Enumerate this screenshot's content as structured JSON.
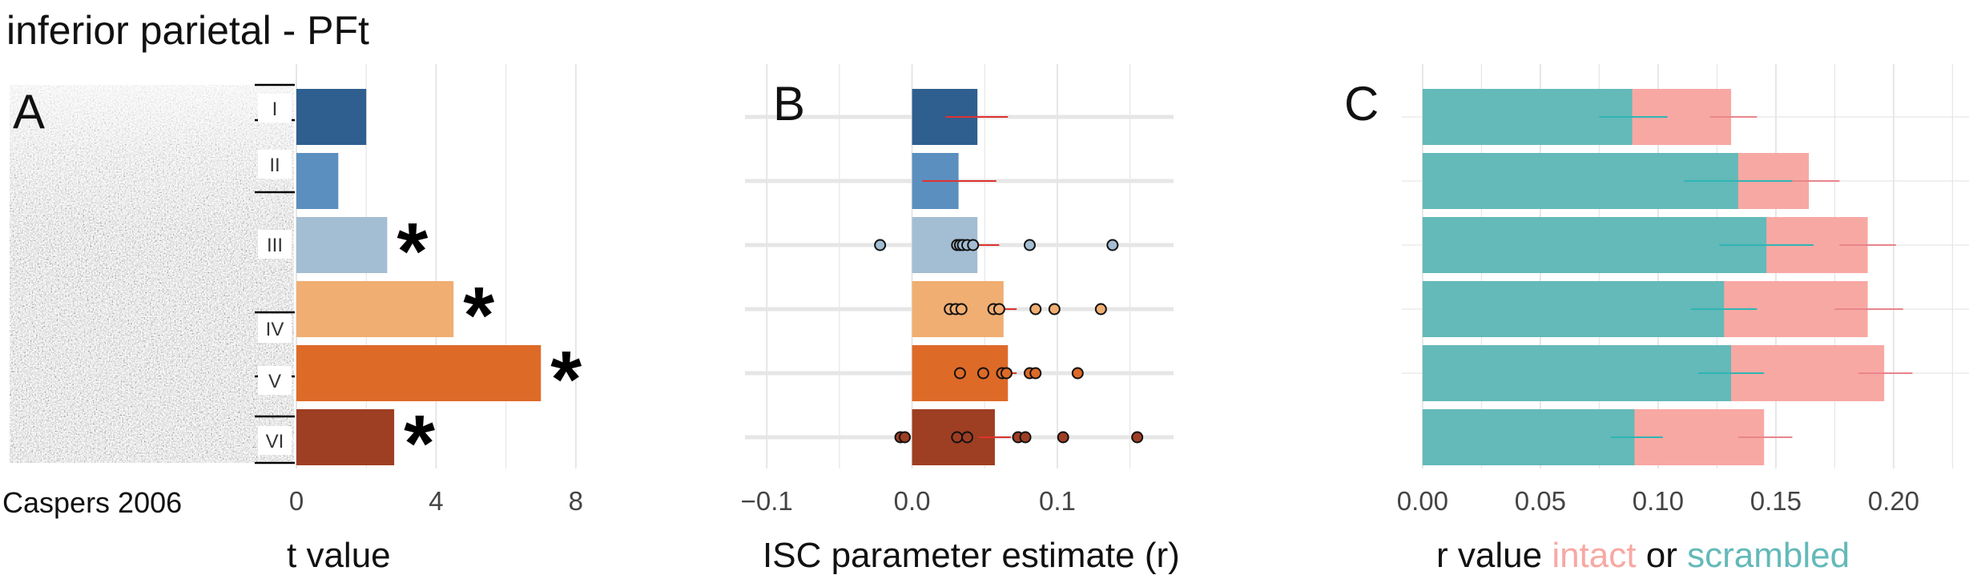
{
  "figure_title": "inferior parietal - PFt",
  "panel_a": {
    "panel_label": "A",
    "image_caption": "Caspers 2006",
    "layer_labels": [
      "I",
      "II",
      "III",
      "IV",
      "V",
      "VI"
    ]
  },
  "panel_b": {
    "panel_label": "B"
  },
  "panel_c": {
    "panel_label": "C",
    "xlabel_prefix": "r value",
    "xlabel_intact": "intact",
    "xlabel_or": "or",
    "xlabel_scrambled": "scrambled"
  },
  "colors": {
    "layers": [
      "#2f5f8f",
      "#5b8fbf",
      "#a3bdd3",
      "#f0ae72",
      "#de6a28",
      "#9e3e23"
    ],
    "intact": "#f8a8a3",
    "scrambled": "#64b9b9",
    "error_bar": "#e0322e",
    "grid": "#e6e6e6"
  },
  "chart_data": [
    {
      "type": "bar",
      "orientation": "horizontal",
      "categories": [
        "I",
        "II",
        "III",
        "IV",
        "V",
        "VI"
      ],
      "values": [
        2.0,
        1.2,
        2.6,
        4.5,
        7.0,
        2.8
      ],
      "significant": [
        false,
        false,
        true,
        true,
        true,
        true
      ],
      "xlabel": "t value",
      "xlim": [
        0,
        8.6
      ],
      "xticks": [
        "0",
        "4",
        "8"
      ],
      "xtick_values": [
        0,
        4,
        8
      ],
      "grid": true
    },
    {
      "type": "bar",
      "orientation": "horizontal",
      "categories": [
        "I",
        "II",
        "III",
        "IV",
        "V",
        "VI"
      ],
      "values": [
        0.045,
        0.032,
        0.045,
        0.063,
        0.066,
        0.057
      ],
      "error_low": [
        0.023,
        0.007,
        0.032,
        0.055,
        0.06,
        0.046
      ],
      "error_high": [
        0.066,
        0.058,
        0.06,
        0.072,
        0.072,
        0.068
      ],
      "points": [
        [],
        [],
        [
          -0.022,
          0.031,
          0.033,
          0.035,
          0.038,
          0.042,
          0.081,
          0.138
        ],
        [
          0.026,
          0.03,
          0.034,
          0.056,
          0.06,
          0.085,
          0.098,
          0.13
        ],
        [
          0.033,
          0.049,
          0.062,
          0.065,
          0.081,
          0.085,
          0.114
        ],
        [
          -0.008,
          -0.005,
          0.031,
          0.038,
          0.073,
          0.078,
          0.104,
          0.155
        ]
      ],
      "xlabel": "ISC parameter estimate (r)",
      "xlim": [
        -0.115,
        0.18
      ],
      "xticks": [
        "−0.1",
        "0.0",
        "0.1"
      ],
      "xtick_values": [
        -0.1,
        0.0,
        0.1
      ],
      "grid": true
    },
    {
      "type": "bar",
      "orientation": "horizontal",
      "stacked": "overlay",
      "categories": [
        "I",
        "II",
        "III",
        "IV",
        "V",
        "VI"
      ],
      "series": [
        {
          "values": [
            0.131,
            0.164,
            0.189,
            0.189,
            0.196,
            0.145
          ],
          "error_low": [
            0.122,
            0.152,
            0.177,
            0.175,
            0.185,
            0.134
          ],
          "error_high": [
            0.142,
            0.177,
            0.201,
            0.204,
            0.208,
            0.157
          ]
        },
        {
          "values": [
            0.089,
            0.134,
            0.146,
            0.128,
            0.131,
            0.09
          ],
          "error_low": [
            0.075,
            0.111,
            0.126,
            0.114,
            0.117,
            0.08
          ],
          "error_high": [
            0.104,
            0.157,
            0.166,
            0.142,
            0.145,
            0.102
          ]
        }
      ],
      "xlabel": "r value intact or scrambled",
      "xlim": [
        -0.002,
        0.232
      ],
      "xticks": [
        "0.00",
        "0.05",
        "0.10",
        "0.15",
        "0.20"
      ],
      "xtick_values": [
        0.0,
        0.05,
        0.1,
        0.15,
        0.2
      ],
      "grid": true
    }
  ]
}
